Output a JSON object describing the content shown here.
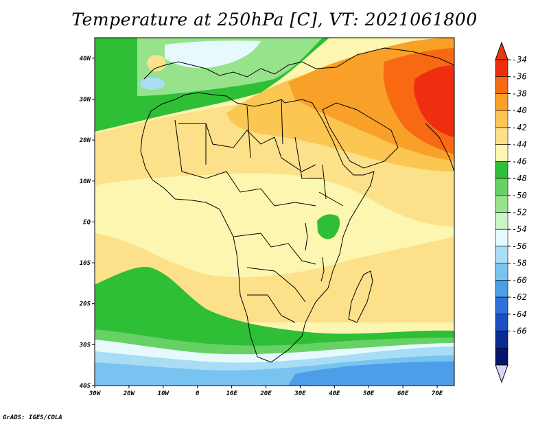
{
  "title": "Temperature at 250hPa [C], VT: 2021061800",
  "credit": "GrADS: IGES/COLA",
  "map": {
    "lon_range": [
      -30,
      75
    ],
    "lat_range": [
      -40,
      45
    ],
    "x_ticks": [
      "30W",
      "20W",
      "10W",
      "0",
      "10E",
      "20E",
      "30E",
      "40E",
      "50E",
      "60E",
      "70E"
    ],
    "x_tick_lons": [
      -30,
      -20,
      -10,
      0,
      10,
      20,
      30,
      40,
      50,
      60,
      70
    ],
    "y_ticks": [
      "40S",
      "30S",
      "20S",
      "10S",
      "EQ",
      "10N",
      "20N",
      "30N",
      "40N"
    ],
    "y_tick_lats": [
      -40,
      -30,
      -20,
      -10,
      0,
      10,
      20,
      30,
      40
    ]
  },
  "colorbar": {
    "labels": [
      "-34",
      "-36",
      "-38",
      "-40",
      "-42",
      "-44",
      "-46",
      "-48",
      "-50",
      "-52",
      "-54",
      "-56",
      "-58",
      "-60",
      "-62",
      "-64",
      "-66"
    ],
    "colors": [
      "#ef2e10",
      "#f76a12",
      "#f9a028",
      "#fbc651",
      "#fce08a",
      "#fcf6b0",
      "#2fbf37",
      "#66d265",
      "#96e38c",
      "#caf6c5",
      "#e6fafd",
      "#a9ddf5",
      "#79c3f1",
      "#4d9ee9",
      "#2e71dc",
      "#1b4fc2",
      "#0a2c8e",
      "#06146b"
    ],
    "top_arrow_color": "#e8380f",
    "bottom_arrow_color": "#dcd4f6"
  },
  "colors": {
    "very_cold": "#4d9ee9",
    "cold": "#79c3f1",
    "light_blue": "#a9ddf5",
    "pale": "#e6fafd",
    "pale_green": "#96e38c",
    "green": "#66d265",
    "dark_green": "#2fbf37",
    "cream": "#fcf6b0",
    "light_orange": "#fce08a",
    "orange": "#fbc651",
    "dark_orange": "#f9a028",
    "red_orange": "#f76a12",
    "red": "#ef2e10"
  }
}
